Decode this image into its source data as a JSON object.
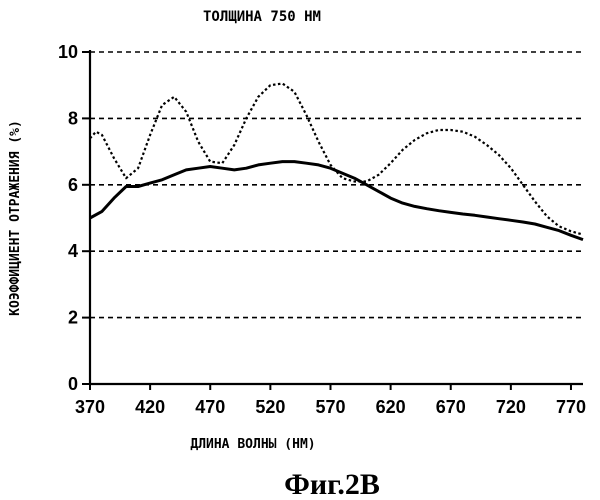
{
  "chart_data": {
    "type": "line",
    "title": "ТОЛЩИНА 750 НМ",
    "xlabel": "ДЛИНА ВОЛНЫ (НМ)",
    "ylabel": "КОЭФФИЦИЕНТ ОТРАЖЕНИЯ (%)",
    "caption": "Фиг.2В",
    "xlim": [
      370,
      780
    ],
    "ylim": [
      0,
      10
    ],
    "x_ticks": [
      370,
      420,
      470,
      520,
      570,
      620,
      670,
      720,
      770
    ],
    "y_ticks": [
      0,
      2,
      4,
      6,
      8,
      10
    ],
    "grid": "horizontal dashed",
    "series": [
      {
        "style": "solid",
        "color": "#000000",
        "points": [
          [
            370,
            5.0
          ],
          [
            380,
            5.2
          ],
          [
            390,
            5.6
          ],
          [
            400,
            5.95
          ],
          [
            410,
            5.95
          ],
          [
            420,
            6.05
          ],
          [
            430,
            6.15
          ],
          [
            440,
            6.3
          ],
          [
            450,
            6.45
          ],
          [
            460,
            6.5
          ],
          [
            470,
            6.55
          ],
          [
            480,
            6.5
          ],
          [
            490,
            6.45
          ],
          [
            500,
            6.5
          ],
          [
            510,
            6.6
          ],
          [
            520,
            6.65
          ],
          [
            530,
            6.7
          ],
          [
            540,
            6.7
          ],
          [
            550,
            6.65
          ],
          [
            560,
            6.6
          ],
          [
            570,
            6.5
          ],
          [
            580,
            6.35
          ],
          [
            590,
            6.2
          ],
          [
            600,
            6.0
          ],
          [
            610,
            5.8
          ],
          [
            620,
            5.6
          ],
          [
            630,
            5.45
          ],
          [
            640,
            5.35
          ],
          [
            650,
            5.28
          ],
          [
            660,
            5.22
          ],
          [
            670,
            5.17
          ],
          [
            680,
            5.12
          ],
          [
            690,
            5.08
          ],
          [
            700,
            5.03
          ],
          [
            710,
            4.98
          ],
          [
            720,
            4.93
          ],
          [
            730,
            4.88
          ],
          [
            740,
            4.82
          ],
          [
            750,
            4.72
          ],
          [
            760,
            4.62
          ],
          [
            770,
            4.48
          ],
          [
            780,
            4.35
          ]
        ]
      },
      {
        "style": "dotted",
        "color": "#000000",
        "points": [
          [
            370,
            7.4
          ],
          [
            375,
            7.6
          ],
          [
            380,
            7.5
          ],
          [
            390,
            6.8
          ],
          [
            400,
            6.2
          ],
          [
            410,
            6.5
          ],
          [
            420,
            7.5
          ],
          [
            430,
            8.4
          ],
          [
            440,
            8.65
          ],
          [
            450,
            8.2
          ],
          [
            460,
            7.3
          ],
          [
            470,
            6.7
          ],
          [
            480,
            6.65
          ],
          [
            490,
            7.2
          ],
          [
            500,
            8.0
          ],
          [
            510,
            8.65
          ],
          [
            520,
            9.0
          ],
          [
            530,
            9.05
          ],
          [
            540,
            8.8
          ],
          [
            550,
            8.1
          ],
          [
            560,
            7.3
          ],
          [
            570,
            6.6
          ],
          [
            580,
            6.2
          ],
          [
            590,
            6.1
          ],
          [
            600,
            6.1
          ],
          [
            610,
            6.3
          ],
          [
            620,
            6.65
          ],
          [
            630,
            7.05
          ],
          [
            640,
            7.35
          ],
          [
            650,
            7.55
          ],
          [
            660,
            7.65
          ],
          [
            670,
            7.65
          ],
          [
            680,
            7.6
          ],
          [
            690,
            7.45
          ],
          [
            700,
            7.2
          ],
          [
            710,
            6.9
          ],
          [
            720,
            6.5
          ],
          [
            730,
            6.0
          ],
          [
            740,
            5.5
          ],
          [
            750,
            5.05
          ],
          [
            760,
            4.75
          ],
          [
            770,
            4.6
          ],
          [
            780,
            4.5
          ]
        ]
      }
    ]
  }
}
